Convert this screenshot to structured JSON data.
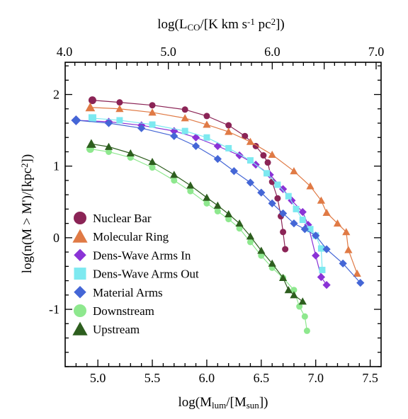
{
  "chart_data": {
    "type": "scatter",
    "xlabel": "log(M_lum/[M_sun])",
    "ylabel": "log(n(M > M')/[kpc^2])",
    "x2label": "log(L_CO/[K km s^-1 pc^2])",
    "xlim": [
      4.7,
      7.6
    ],
    "ylim": [
      -1.8,
      2.45
    ],
    "x_ticks": [
      "5.0",
      "5.5",
      "6.0",
      "6.5",
      "7.0",
      "7.5"
    ],
    "y_ticks": [
      "2",
      "1",
      "0",
      "-1"
    ],
    "x2lim": [
      4.0,
      7.0
    ],
    "x2_ticks": [
      "4.0",
      "5.0",
      "6.0",
      "7.0"
    ],
    "legend_position": "lower-left",
    "series": [
      {
        "name": "Nuclear Bar",
        "color": "#8b2456",
        "marker": "circle",
        "points": [
          [
            4.95,
            1.92
          ],
          [
            5.2,
            1.89
          ],
          [
            5.5,
            1.85
          ],
          [
            5.8,
            1.79
          ],
          [
            6.0,
            1.7
          ],
          [
            6.2,
            1.57
          ],
          [
            6.35,
            1.42
          ],
          [
            6.45,
            1.28
          ],
          [
            6.52,
            1.15
          ],
          [
            6.56,
            1.05
          ],
          [
            6.6,
            0.78
          ],
          [
            6.65,
            0.55
          ],
          [
            6.68,
            0.3
          ],
          [
            6.7,
            0.08
          ],
          [
            6.72,
            -0.16
          ]
        ]
      },
      {
        "name": "Molecular Ring",
        "color": "#e07a45",
        "marker": "triangle-up",
        "points": [
          [
            4.93,
            1.82
          ],
          [
            5.2,
            1.8
          ],
          [
            5.5,
            1.75
          ],
          [
            5.8,
            1.67
          ],
          [
            6.0,
            1.58
          ],
          [
            6.2,
            1.48
          ],
          [
            6.4,
            1.34
          ],
          [
            6.6,
            1.16
          ],
          [
            6.8,
            0.93
          ],
          [
            6.95,
            0.72
          ],
          [
            7.05,
            0.52
          ],
          [
            7.1,
            0.35
          ],
          [
            7.2,
            0.2
          ],
          [
            7.28,
            0.08
          ],
          [
            7.3,
            -0.17
          ],
          [
            7.38,
            -0.5
          ]
        ]
      },
      {
        "name": "Dens-Wave Arms In",
        "color": "#8a33d6",
        "marker": "diamond",
        "points": [
          [
            4.8,
            1.64
          ],
          [
            5.1,
            1.62
          ],
          [
            5.4,
            1.57
          ],
          [
            5.7,
            1.49
          ],
          [
            5.9,
            1.4
          ],
          [
            6.1,
            1.28
          ],
          [
            6.3,
            1.15
          ],
          [
            6.45,
            1.02
          ],
          [
            6.58,
            0.88
          ],
          [
            6.7,
            0.68
          ],
          [
            6.78,
            0.52
          ],
          [
            6.88,
            0.36
          ],
          [
            6.93,
            0.18
          ],
          [
            7.0,
            -0.25
          ],
          [
            7.05,
            -0.55
          ],
          [
            7.1,
            -0.66
          ]
        ]
      },
      {
        "name": "Dens-Wave Arms Out",
        "color": "#7de9f0",
        "marker": "square",
        "points": [
          [
            4.95,
            1.67
          ],
          [
            5.2,
            1.64
          ],
          [
            5.5,
            1.58
          ],
          [
            5.8,
            1.49
          ],
          [
            6.0,
            1.4
          ],
          [
            6.2,
            1.25
          ],
          [
            6.4,
            1.08
          ],
          [
            6.55,
            0.9
          ],
          [
            6.65,
            0.74
          ],
          [
            6.75,
            0.58
          ],
          [
            6.82,
            0.4
          ],
          [
            6.88,
            0.25
          ],
          [
            6.95,
            0.12
          ],
          [
            7.0,
            0.03
          ],
          [
            7.05,
            -0.15
          ],
          [
            7.06,
            -0.45
          ]
        ]
      },
      {
        "name": "Material Arms",
        "color": "#4466d6",
        "marker": "diamond",
        "points": [
          [
            4.8,
            1.64
          ],
          [
            5.1,
            1.6
          ],
          [
            5.4,
            1.53
          ],
          [
            5.7,
            1.42
          ],
          [
            5.9,
            1.28
          ],
          [
            6.1,
            1.1
          ],
          [
            6.25,
            0.93
          ],
          [
            6.4,
            0.77
          ],
          [
            6.5,
            0.63
          ],
          [
            6.6,
            0.48
          ],
          [
            6.7,
            0.34
          ],
          [
            6.8,
            0.2
          ],
          [
            6.9,
            0.12
          ],
          [
            7.0,
            0.03
          ],
          [
            7.1,
            -0.16
          ],
          [
            7.25,
            -0.36
          ],
          [
            7.41,
            -0.63
          ]
        ]
      },
      {
        "name": "Downstream",
        "color": "#8ee88e",
        "marker": "circle",
        "points": [
          [
            4.93,
            1.24
          ],
          [
            5.1,
            1.2
          ],
          [
            5.3,
            1.12
          ],
          [
            5.5,
            0.98
          ],
          [
            5.7,
            0.8
          ],
          [
            5.85,
            0.65
          ],
          [
            6.0,
            0.48
          ],
          [
            6.1,
            0.37
          ],
          [
            6.2,
            0.26
          ],
          [
            6.3,
            0.13
          ],
          [
            6.4,
            -0.06
          ],
          [
            6.5,
            -0.25
          ],
          [
            6.6,
            -0.42
          ],
          [
            6.7,
            -0.56
          ],
          [
            6.8,
            -0.73
          ],
          [
            6.85,
            -0.96
          ],
          [
            6.9,
            -1.1
          ],
          [
            6.92,
            -1.3
          ]
        ]
      },
      {
        "name": "Upstream",
        "color": "#2d5e1e",
        "marker": "triangle-up",
        "points": [
          [
            4.94,
            1.31
          ],
          [
            5.1,
            1.27
          ],
          [
            5.3,
            1.18
          ],
          [
            5.5,
            1.06
          ],
          [
            5.7,
            0.88
          ],
          [
            5.85,
            0.73
          ],
          [
            6.0,
            0.56
          ],
          [
            6.1,
            0.45
          ],
          [
            6.2,
            0.33
          ],
          [
            6.3,
            0.2
          ],
          [
            6.4,
            0.02
          ],
          [
            6.5,
            -0.18
          ],
          [
            6.6,
            -0.36
          ],
          [
            6.7,
            -0.56
          ],
          [
            6.75,
            -0.73
          ],
          [
            6.8,
            -0.8
          ],
          [
            6.88,
            -0.89
          ]
        ]
      }
    ]
  }
}
